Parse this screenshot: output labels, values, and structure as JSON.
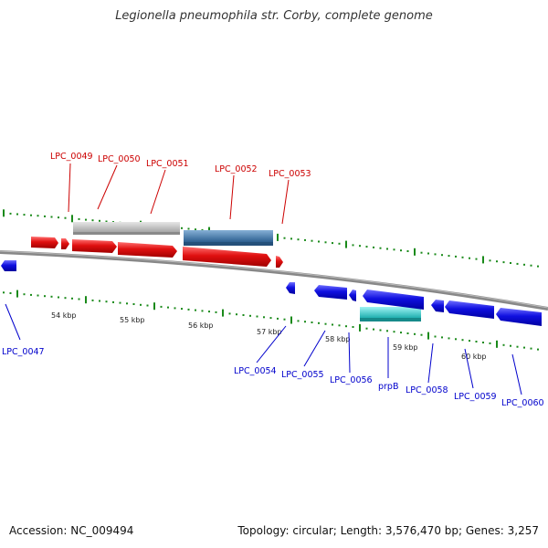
{
  "title": "Legionella pneumophila str. Corby, complete genome",
  "footer": {
    "accession": "Accession: NC_009494",
    "topology": "Topology: circular; Length: 3,576,470 bp; Genes: 3,257"
  },
  "colors": {
    "forward": "#e01010",
    "reverse": "#1010e0",
    "forward_label": "#cc0000",
    "reverse_label": "#0000cc",
    "tick": "#1a8a1a",
    "backbone": "#888888",
    "grey_feature": "#c8c8c8",
    "steel_feature": "#4a7fb0",
    "cyan_feature": "#30d0d0"
  },
  "scale_labels": [
    "54 kbp",
    "55 kbp",
    "56 kbp",
    "57 kbp",
    "58 kbp",
    "59 kbp",
    "60 kbp"
  ],
  "forward_genes": [
    "LPC_0049",
    "LPC_0050",
    "LPC_0051",
    "LPC_0052",
    "LPC_0053"
  ],
  "reverse_genes": [
    "LPC_0047",
    "LPC_0054",
    "LPC_0055",
    "LPC_0056",
    "prpB",
    "LPC_0058",
    "LPC_0059",
    "LPC_0060"
  ]
}
